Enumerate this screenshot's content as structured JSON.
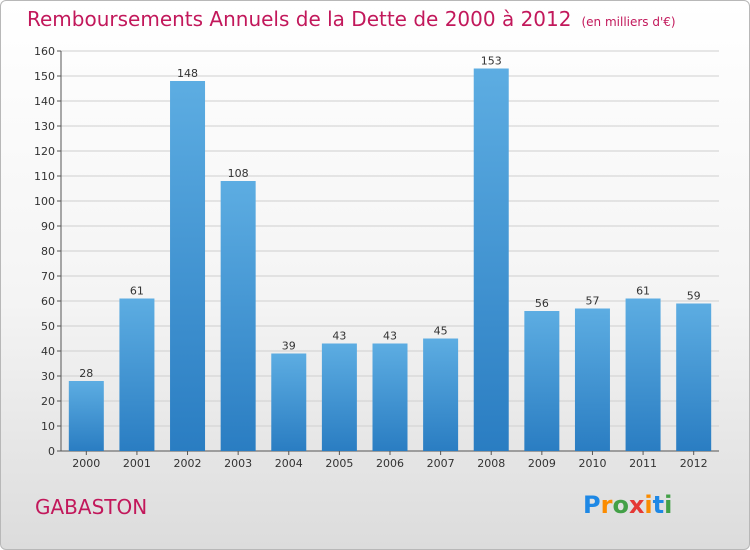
{
  "title": "Remboursements Annuels de la Dette de 2000 à 2012",
  "unit": "(en milliers d'€)",
  "commune": "GABASTON",
  "logo": {
    "text": "Proxiti",
    "letter_colors": [
      "#1e88e5",
      "#fb8c00",
      "#43a047",
      "#e53935",
      "#fb8c00",
      "#1e88e5",
      "#43a047"
    ]
  },
  "colors": {
    "title": "#c2185b",
    "bar_light": "#5dade2",
    "bar_dark": "#2a7dc2",
    "axis": "#555555",
    "grid": "#cfcfcf"
  },
  "chart_data": {
    "type": "bar",
    "categories": [
      "2000",
      "2001",
      "2002",
      "2003",
      "2004",
      "2005",
      "2006",
      "2007",
      "2008",
      "2009",
      "2010",
      "2011",
      "2012"
    ],
    "values": [
      28,
      61,
      148,
      108,
      39,
      43,
      43,
      45,
      153,
      56,
      57,
      61,
      59
    ],
    "ylim": [
      0,
      160
    ],
    "ytick_step": 10,
    "grid": true,
    "xlabel": "",
    "ylabel": ""
  }
}
